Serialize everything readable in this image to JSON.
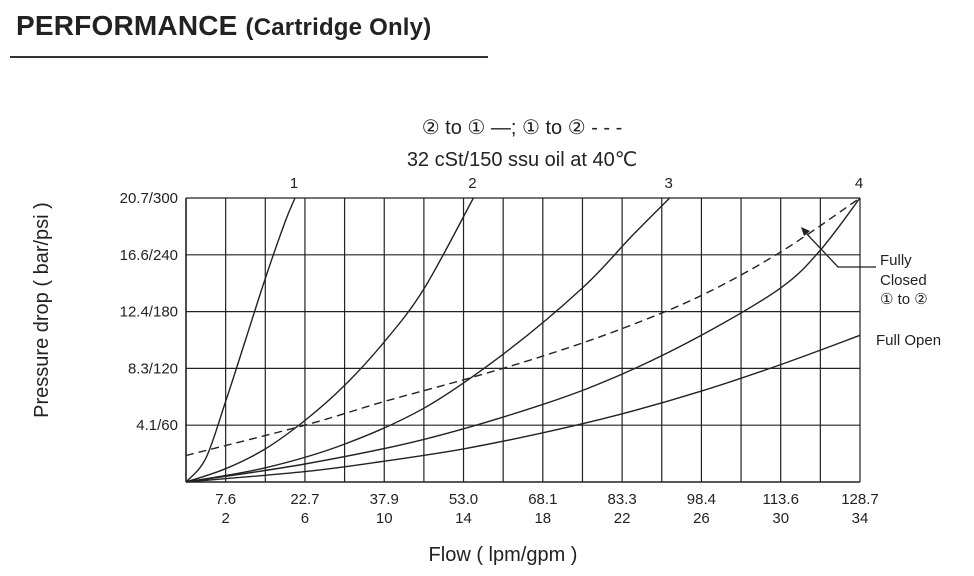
{
  "header": {
    "title_main": "PERFORMANCE",
    "title_paren": "(Cartridge Only)"
  },
  "chart_data": {
    "type": "line",
    "legend_line1": "② to ① —;  ① to  ② - - -",
    "legend_line2": "32 cSt/150 ssu oil at 40℃",
    "xlabel": "Flow ( lpm/gpm )",
    "ylabel": "Pressure drop ( bar/psi )",
    "xlim": [
      0,
      34
    ],
    "ylim": [
      0,
      300
    ],
    "x_ticks": [
      {
        "gpm": 2,
        "lpm": "7.6",
        "gpm_label": "2"
      },
      {
        "gpm": 6,
        "lpm": "22.7",
        "gpm_label": "6"
      },
      {
        "gpm": 10,
        "lpm": "37.9",
        "gpm_label": "10"
      },
      {
        "gpm": 14,
        "lpm": "53.0",
        "gpm_label": "14"
      },
      {
        "gpm": 18,
        "lpm": "68.1",
        "gpm_label": "18"
      },
      {
        "gpm": 22,
        "lpm": "83.3",
        "gpm_label": "22"
      },
      {
        "gpm": 26,
        "lpm": "98.4",
        "gpm_label": "26"
      },
      {
        "gpm": 30,
        "lpm": "113.6",
        "gpm_label": "30"
      },
      {
        "gpm": 34,
        "lpm": "128.7",
        "gpm_label": "34"
      }
    ],
    "y_ticks": [
      {
        "psi": 60,
        "label": "4.1/60"
      },
      {
        "psi": 120,
        "label": "8.3/120"
      },
      {
        "psi": 180,
        "label": "12.4/180"
      },
      {
        "psi": 240,
        "label": "16.6/240"
      },
      {
        "psi": 300,
        "label": "20.7/300"
      }
    ],
    "x_grid_step": 2,
    "y_grid_step": 60,
    "grid": true,
    "series": [
      {
        "name": "1",
        "style": "solid",
        "end_label": "1",
        "x": [
          0,
          1,
          2,
          3,
          4,
          5,
          5.5
        ],
        "y": [
          0,
          25,
          85,
          150,
          215,
          275,
          300
        ]
      },
      {
        "name": "2",
        "style": "solid",
        "end_label": "2",
        "x": [
          0,
          2,
          4,
          6,
          8,
          10,
          12,
          14.5
        ],
        "y": [
          0,
          14,
          35,
          65,
          102,
          148,
          204,
          300
        ]
      },
      {
        "name": "3",
        "style": "solid",
        "end_label": "3",
        "x": [
          0,
          4,
          8,
          12,
          16,
          20,
          22.5,
          24.4
        ],
        "y": [
          0,
          15,
          40,
          78,
          135,
          205,
          260,
          300
        ]
      },
      {
        "name": "4",
        "style": "solid",
        "end_label": "4",
        "x": [
          0,
          6,
          12,
          18,
          22,
          26,
          30,
          32,
          34
        ],
        "y": [
          0,
          19,
          45,
          82,
          114,
          155,
          205,
          245,
          300
        ]
      },
      {
        "name": "Full Open",
        "style": "solid",
        "x": [
          0,
          6,
          10,
          14,
          18,
          22,
          26,
          30,
          34
        ],
        "y": [
          0,
          11,
          22,
          35,
          52,
          72,
          96,
          124,
          155
        ]
      },
      {
        "name": "Fully Closed",
        "style": "dashed",
        "x": [
          0,
          6,
          10,
          14,
          18,
          22,
          26,
          30,
          34
        ],
        "y": [
          28,
          60,
          85,
          108,
          133,
          162,
          197,
          243,
          300
        ]
      }
    ],
    "annotations": {
      "fully_closed": [
        "Fully",
        "Closed",
        "① to ②"
      ],
      "full_open": "Full Open"
    }
  }
}
